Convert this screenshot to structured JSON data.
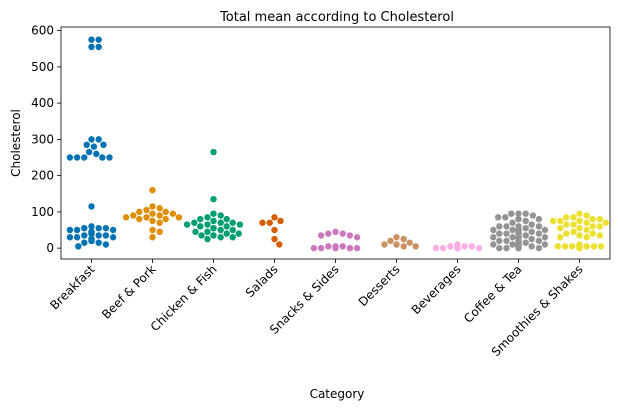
{
  "chart_data": {
    "type": "scatter",
    "subtype": "swarm",
    "title": "Total mean according to Cholesterol",
    "xlabel": "Category",
    "ylabel": "Cholesterol",
    "ylim": [
      -30,
      610
    ],
    "yticks": [
      0,
      100,
      200,
      300,
      400,
      500,
      600
    ],
    "grid": false,
    "legend": "none",
    "categories": [
      "Breakfast",
      "Beef & Pork",
      "Chicken & Fish",
      "Salads",
      "Snacks & Sides",
      "Desserts",
      "Beverages",
      "Coffee & Tea",
      "Smoothies & Shakes"
    ],
    "colors": [
      "#0173b2",
      "#de8f05",
      "#029e73",
      "#d55e00",
      "#cc78bc",
      "#ca9161",
      "#fbafe4",
      "#949494",
      "#ece133"
    ],
    "values": [
      [
        575,
        575,
        555,
        555,
        300,
        300,
        285,
        285,
        280,
        265,
        260,
        250,
        250,
        250,
        250,
        250,
        115,
        60,
        55,
        55,
        55,
        50,
        50,
        50,
        45,
        45,
        40,
        40,
        40,
        35,
        35,
        35,
        30,
        30,
        30,
        25,
        25,
        20,
        20,
        20,
        15,
        15,
        10,
        5
      ],
      [
        160,
        115,
        110,
        105,
        100,
        100,
        95,
        95,
        90,
        90,
        85,
        85,
        85,
        80,
        80,
        75,
        70,
        50,
        45,
        30
      ],
      [
        265,
        135,
        95,
        90,
        85,
        80,
        80,
        75,
        70,
        70,
        70,
        65,
        65,
        65,
        60,
        60,
        55,
        55,
        50,
        50,
        45,
        45,
        40,
        40,
        35,
        35,
        30,
        30,
        25
      ],
      [
        85,
        75,
        70,
        70,
        50,
        25,
        10
      ],
      [
        45,
        40,
        40,
        35,
        35,
        30,
        5,
        5,
        5,
        0,
        0,
        0,
        0,
        0
      ],
      [
        30,
        25,
        20,
        15,
        10,
        10,
        5,
        5
      ],
      [
        10,
        5,
        5,
        5,
        0,
        0,
        0,
        0,
        0,
        0,
        0,
        0,
        0,
        0,
        0,
        0
      ],
      [
        95,
        95,
        95,
        90,
        85,
        85,
        80,
        80,
        80,
        75,
        70,
        65,
        60,
        60,
        60,
        60,
        55,
        50,
        50,
        50,
        50,
        50,
        50,
        45,
        45,
        40,
        40,
        40,
        40,
        40,
        40,
        40,
        35,
        30,
        30,
        30,
        30,
        30,
        30,
        30,
        25,
        20,
        20,
        20,
        20,
        20,
        20,
        20,
        15,
        10,
        10,
        10,
        10,
        10,
        10,
        10,
        5,
        5,
        5,
        5,
        5,
        0,
        0,
        0,
        0,
        0
      ],
      [
        95,
        90,
        85,
        85,
        80,
        80,
        75,
        75,
        75,
        70,
        70,
        65,
        65,
        60,
        60,
        55,
        55,
        50,
        45,
        40,
        40,
        35,
        35,
        30,
        30,
        10,
        5,
        5,
        5,
        5,
        5,
        5,
        5,
        5,
        5,
        5,
        5,
        0,
        0,
        0
      ]
    ]
  }
}
